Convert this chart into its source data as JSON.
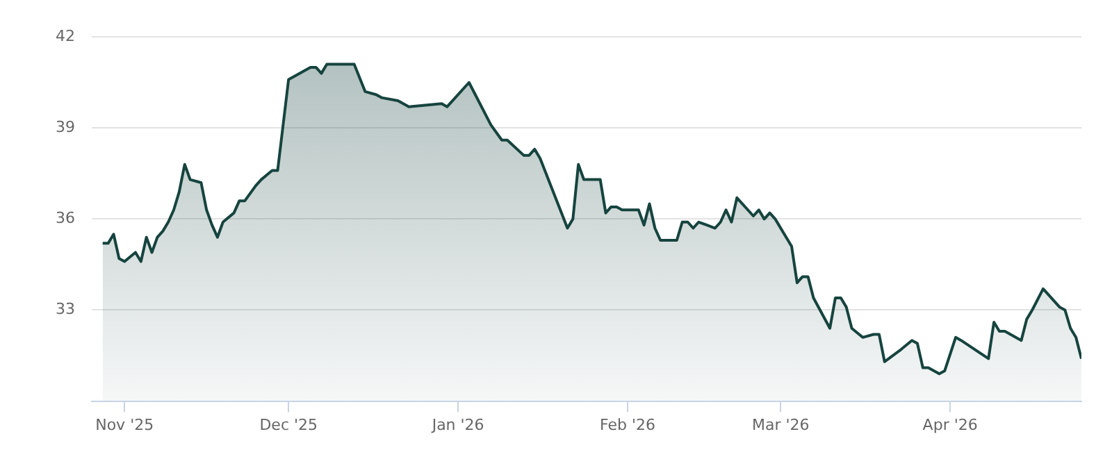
{
  "chart_data": {
    "type": "area",
    "x": [
      "2025-10-28",
      "2025-10-29",
      "2025-10-30",
      "2025-10-31",
      "2025-11-01",
      "2025-11-03",
      "2025-11-04",
      "2025-11-05",
      "2025-11-06",
      "2025-11-07",
      "2025-11-08",
      "2025-11-09",
      "2025-11-10",
      "2025-11-11",
      "2025-11-12",
      "2025-11-13",
      "2025-11-15",
      "2025-11-16",
      "2025-11-17",
      "2025-11-18",
      "2025-11-19",
      "2025-11-21",
      "2025-11-22",
      "2025-11-23",
      "2025-11-25",
      "2025-11-26",
      "2025-11-28",
      "2025-11-29",
      "2025-11-30",
      "2025-12-01",
      "2025-12-05",
      "2025-12-06",
      "2025-12-07",
      "2025-12-08",
      "2025-12-09",
      "2025-12-13",
      "2025-12-15",
      "2025-12-17",
      "2025-12-18",
      "2025-12-21",
      "2025-12-23",
      "2025-12-29",
      "2025-12-30",
      "2026-01-03",
      "2026-01-07",
      "2026-01-09",
      "2026-01-10",
      "2026-01-13",
      "2026-01-14",
      "2026-01-15",
      "2026-01-16",
      "2026-01-21",
      "2026-01-22",
      "2026-01-23",
      "2026-01-24",
      "2026-01-27",
      "2026-01-28",
      "2026-01-29",
      "2026-01-30",
      "2026-01-31",
      "2026-02-03",
      "2026-02-04",
      "2026-02-05",
      "2026-02-06",
      "2026-02-07",
      "2026-02-10",
      "2026-02-11",
      "2026-02-12",
      "2026-02-13",
      "2026-02-14",
      "2026-02-17",
      "2026-02-18",
      "2026-02-19",
      "2026-02-20",
      "2026-02-21",
      "2026-02-24",
      "2026-02-25",
      "2026-02-26",
      "2026-02-27",
      "2026-02-28",
      "2026-03-03",
      "2026-03-04",
      "2026-03-05",
      "2026-03-06",
      "2026-03-07",
      "2026-03-10",
      "2026-03-11",
      "2026-03-12",
      "2026-03-13",
      "2026-03-14",
      "2026-03-16",
      "2026-03-18",
      "2026-03-19",
      "2026-03-20",
      "2026-03-23",
      "2026-03-25",
      "2026-03-26",
      "2026-03-27",
      "2026-03-28",
      "2026-03-30",
      "2026-03-31",
      "2026-04-02",
      "2026-04-03",
      "2026-04-08",
      "2026-04-09",
      "2026-04-10",
      "2026-04-11",
      "2026-04-14",
      "2026-04-15",
      "2026-04-16",
      "2026-04-18",
      "2026-04-21",
      "2026-04-22",
      "2026-04-23",
      "2026-04-24",
      "2026-04-25"
    ],
    "series": [
      {
        "color": "#16443f",
        "values": [
          35.2,
          35.2,
          35.5,
          34.7,
          34.6,
          34.9,
          34.6,
          35.4,
          34.9,
          35.4,
          35.6,
          35.9,
          36.3,
          36.9,
          37.8,
          37.3,
          37.2,
          36.3,
          35.8,
          35.4,
          35.9,
          36.2,
          36.6,
          36.6,
          37.1,
          37.3,
          37.6,
          37.6,
          39.1,
          40.6,
          41.0,
          41.0,
          40.8,
          41.1,
          41.1,
          41.1,
          40.2,
          40.1,
          40.0,
          39.9,
          39.7,
          39.8,
          39.7,
          40.5,
          39.1,
          38.6,
          38.6,
          38.1,
          38.1,
          38.3,
          38.0,
          35.7,
          36.0,
          37.8,
          37.3,
          37.3,
          36.2,
          36.4,
          36.4,
          36.3,
          36.3,
          35.8,
          36.5,
          35.7,
          35.3,
          35.3,
          35.9,
          35.9,
          35.7,
          35.9,
          35.7,
          35.9,
          36.3,
          35.9,
          36.7,
          36.1,
          36.3,
          36.0,
          36.2,
          36.0,
          35.1,
          33.9,
          34.1,
          34.1,
          33.4,
          32.4,
          33.4,
          33.4,
          33.1,
          32.4,
          32.1,
          32.2,
          32.2,
          31.3,
          31.7,
          32.0,
          31.9,
          31.1,
          31.1,
          30.9,
          31.0,
          32.1,
          32.0,
          31.4,
          32.6,
          32.3,
          32.3,
          32.0,
          32.7,
          33.0,
          33.7,
          33.1,
          33.0,
          32.4,
          32.1,
          31.4
        ]
      }
    ],
    "xlim": [
      "2025-10-26",
      "2026-04-25"
    ],
    "xticks": [
      {
        "value": "2025-11-01",
        "label": "Nov '25"
      },
      {
        "value": "2025-12-01",
        "label": "Dec '25"
      },
      {
        "value": "2026-01-01",
        "label": "Jan '26"
      },
      {
        "value": "2026-02-01",
        "label": "Feb '26"
      },
      {
        "value": "2026-03-01",
        "label": "Mar '26"
      },
      {
        "value": "2026-04-01",
        "label": "Apr '26"
      }
    ],
    "ylim": [
      30,
      42
    ],
    "yticks": [
      33,
      36,
      39,
      42
    ],
    "grid": "y",
    "legend": false,
    "marker": "none",
    "line_style": "solid"
  }
}
